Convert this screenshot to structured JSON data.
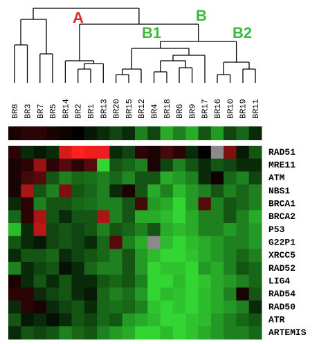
{
  "chart_data": {
    "type": "heatmap",
    "columns": [
      "BR8",
      "BR3",
      "BR7",
      "BR5",
      "BR14",
      "BR2",
      "BR1",
      "BR13",
      "BR20",
      "BR15",
      "BR12",
      "BR4",
      "BR18",
      "BR6",
      "BR9",
      "BR17",
      "BR16",
      "BR10",
      "BR19",
      "BR11"
    ],
    "rows": [
      "RAD51",
      "MRE11",
      "ATM",
      "NBS1",
      "BRCA1",
      "BRCA2",
      "P53",
      "G22P1",
      "XRCC5",
      "RAD52",
      "LIG4",
      "RAD54",
      "RAD50",
      "ATR",
      "ARTEMIS"
    ],
    "summary_values": [
      0.3,
      0.5,
      0.5,
      0.3,
      0.2,
      0,
      -0.3,
      -0.5,
      -0.8,
      -0.5,
      -1.5,
      -0.8,
      -2,
      -1.5,
      -2,
      -1,
      -1.8,
      -0.8,
      -1.2,
      -0.5
    ],
    "values": [
      [
        0.5,
        -0.5,
        -0.3,
        -0.5,
        2.5,
        3,
        2.8,
        2.8,
        -0.5,
        -0.8,
        0.5,
        0.3,
        0.8,
        0.5,
        -0.5,
        0,
        null,
        1.5,
        -0.3,
        -1
      ],
      [
        0.3,
        0.5,
        1.8,
        0.5,
        1,
        0.5,
        1,
        -2.5,
        -1,
        -1.2,
        -1.5,
        0.3,
        -0.8,
        -1.5,
        -1,
        -0.5,
        -1,
        -0.8,
        -0.5,
        -0.5
      ],
      [
        0.3,
        0.8,
        1,
        -1,
        -1.5,
        -1.2,
        -1.3,
        -1.5,
        -1.2,
        -1.6,
        -1,
        -1,
        -2,
        -1.8,
        -1.5,
        -0.5,
        0.2,
        -1.2,
        -1.5,
        -0.8
      ],
      [
        0.3,
        2,
        -1,
        -1.5,
        1.5,
        -1,
        -1.2,
        -1.5,
        -0.5,
        0.3,
        -1,
        -2,
        -1.5,
        -2.2,
        -1.8,
        -1.5,
        -1,
        -1.5,
        -1.2,
        -1.5
      ],
      [
        -0.5,
        0.5,
        -1.5,
        -1,
        -1,
        -1.2,
        -1.3,
        -1.5,
        -1.5,
        -1,
        0.8,
        -1.8,
        -2,
        -2.5,
        -1.8,
        1,
        -1.5,
        -1,
        -1.2,
        -1.5
      ],
      [
        -1.2,
        0.5,
        2,
        -1,
        -0.5,
        -1,
        -1,
        2,
        -1.5,
        -1,
        -2,
        -2,
        -2.2,
        -2.5,
        -2,
        -1.5,
        -1.5,
        -1,
        -1.5,
        -2
      ],
      [
        -2.2,
        -0.5,
        2.2,
        -0.8,
        -1,
        -0.8,
        -1,
        -1.5,
        -1,
        -1.2,
        -1.5,
        -1,
        -2,
        -2.2,
        -2,
        -1.5,
        -1.5,
        -1.8,
        -1.5,
        -1.8
      ],
      [
        -1,
        -0.5,
        -0.3,
        -0.8,
        -1,
        -0.8,
        -0.5,
        -1.2,
        1,
        -1.5,
        -2,
        null,
        -2.2,
        -2.5,
        -2.2,
        -2,
        -1.8,
        -1.5,
        -1.5,
        -1.8
      ],
      [
        -0.5,
        -1,
        -1,
        -1.2,
        -0.5,
        -0.8,
        -1,
        -1.2,
        -1.5,
        -1,
        -1.8,
        -2.2,
        -2.5,
        -2.5,
        -2.3,
        -2,
        -1.8,
        -1.5,
        -1.2,
        -1.5
      ],
      [
        -1.5,
        -0.5,
        -0.8,
        -1,
        -0.2,
        -0.5,
        -1.2,
        -1.5,
        -1.5,
        -1,
        -1.8,
        -2.5,
        -2.3,
        -2.3,
        -2.5,
        -1.8,
        -2,
        -1.5,
        -1,
        -1.2
      ],
      [
        0.3,
        -0.5,
        -1,
        -0.5,
        -1,
        -0.5,
        -0.5,
        -1,
        -1.2,
        -1,
        -1.5,
        -2.5,
        -2.5,
        -2.2,
        -2.5,
        -2.3,
        -2,
        -1.8,
        -1.5,
        -1.2
      ],
      [
        0.5,
        0.5,
        -0.5,
        -0.8,
        -1,
        -0.5,
        -0.3,
        -1.2,
        -1.5,
        -1.3,
        -1.8,
        -2.5,
        -2.2,
        -2.3,
        -2.5,
        -2.2,
        -2,
        -1.5,
        0.3,
        -1
      ],
      [
        -0.5,
        0.5,
        0.3,
        -0.5,
        -0.8,
        -1,
        -0.5,
        -1.2,
        -1.3,
        -1.2,
        -1.5,
        -2.3,
        -2.5,
        -2.3,
        -2.5,
        -2.2,
        -2,
        -1.8,
        -1.5,
        -0.5
      ],
      [
        -1,
        -0.3,
        -0.5,
        -0.2,
        -0.5,
        -1,
        -0.8,
        -1.2,
        -1,
        -1.8,
        -2,
        -2.2,
        -2.5,
        -2.5,
        -2.3,
        -2.2,
        -1.8,
        -1.5,
        -1.2,
        -1
      ],
      [
        -0.5,
        -1,
        -0.8,
        -1,
        -1.5,
        -1.2,
        -1,
        -1.5,
        -1.8,
        -2,
        -2.5,
        -2.5,
        -2.2,
        -2.5,
        -2.3,
        -2,
        -1.8,
        -1.5,
        -1.5,
        -1.2
      ]
    ],
    "vlim": [
      -3,
      3
    ],
    "colormap": {
      "low": "#3dff3d",
      "mid": "#000000",
      "high": "#ff2020",
      "missing": "#8a8a8a"
    },
    "clusters": [
      {
        "label": "A",
        "color": "#e02828"
      },
      {
        "label": "B",
        "color": "#3cb83c"
      },
      {
        "label": "B1",
        "color": "#3cb83c"
      },
      {
        "label": "B2",
        "color": "#3cb83c"
      }
    ]
  }
}
